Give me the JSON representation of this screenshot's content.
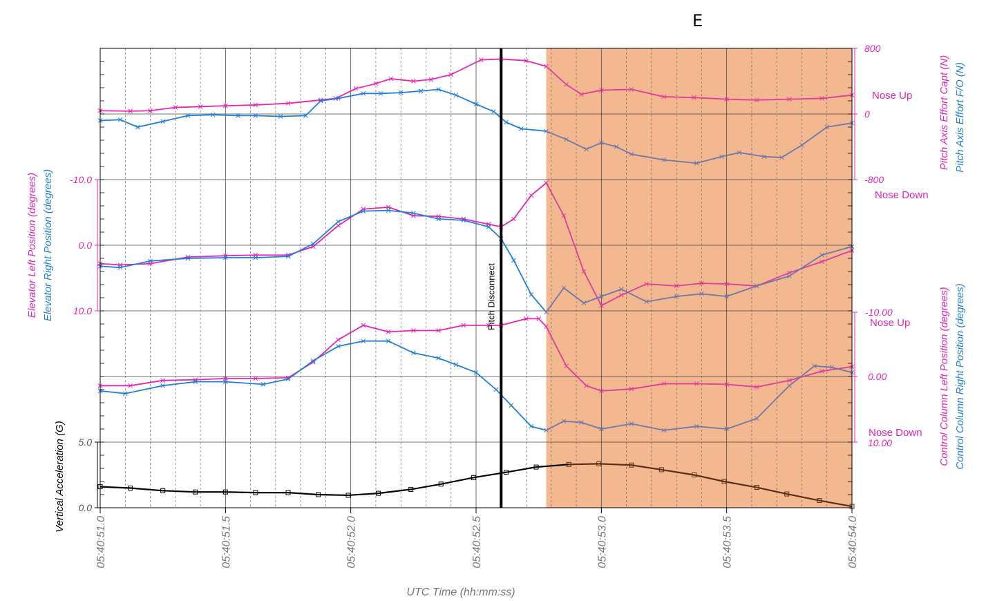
{
  "panel_label": "E",
  "colors": {
    "magenta": "#e823b5",
    "blue": "#1f7fd8",
    "black": "#000000",
    "shade": "#f4b891",
    "grid": "#555555",
    "blue_in_shade": "#6b78a8",
    "magenta_in_shade": "#e23a9a",
    "black_in_shade": "#5a2e17"
  },
  "chart_data": {
    "type": "line",
    "xlabel": "UTC Time (hh:mm:ss)",
    "x_ticks": [
      "05:40:51.0",
      "05:40:51.5",
      "05:40:52.0",
      "05:40:52.5",
      "05:40:53.0",
      "05:40:53.5",
      "05:40:54.0"
    ],
    "x_range": [
      51.0,
      54.0
    ],
    "shaded_region": {
      "x_start": 52.78,
      "x_end": 54.0
    },
    "event_marker": {
      "x": 52.6,
      "label": "Pitch Disconnect"
    },
    "panels": [
      {
        "name": "pitch_axis_effort",
        "axis_side": "right",
        "ylabel_1": "Pitch Axis Effort Capt (N)",
        "ylabel_2": "Pitch Axis Effort F/O (N)",
        "yticks": [
          "800",
          "0",
          "-800"
        ],
        "ylim": [
          -800,
          800
        ],
        "annotations": [
          "Nose Up",
          "Nose Down"
        ],
        "series": [
          {
            "name": "Capt",
            "color": "magenta",
            "x": [
              51.0,
              51.12,
              51.2,
              51.3,
              51.4,
              51.5,
              51.62,
              51.75,
              51.88,
              51.94,
              52.02,
              52.1,
              52.16,
              52.25,
              52.32,
              52.4,
              52.52,
              52.6,
              52.7,
              52.78,
              52.86,
              52.92,
              53.0,
              53.12,
              53.25,
              53.37,
              53.5,
              53.62,
              53.75,
              53.88,
              54.0
            ],
            "y": [
              40,
              35,
              40,
              80,
              90,
              100,
              110,
              130,
              170,
              190,
              310,
              370,
              430,
              400,
              420,
              480,
              660,
              670,
              650,
              580,
              360,
              240,
              290,
              300,
              210,
              200,
              180,
              170,
              180,
              190,
              230
            ]
          },
          {
            "name": "F/O",
            "color": "blue",
            "x": [
              51.0,
              51.08,
              51.15,
              51.25,
              51.35,
              51.45,
              51.55,
              51.62,
              51.72,
              51.82,
              51.88,
              51.95,
              52.05,
              52.12,
              52.2,
              52.28,
              52.35,
              52.42,
              52.5,
              52.57,
              52.62,
              52.68,
              52.78,
              52.86,
              52.94,
              53.0,
              53.06,
              53.12,
              53.25,
              53.38,
              53.48,
              53.55,
              53.65,
              53.72,
              53.8,
              53.9,
              54.0
            ],
            "y": [
              -80,
              -70,
              -160,
              -90,
              -20,
              -10,
              -20,
              -20,
              -30,
              -20,
              160,
              190,
              250,
              250,
              260,
              280,
              300,
              230,
              120,
              30,
              -100,
              -180,
              -210,
              -310,
              -430,
              -350,
              -400,
              -490,
              -560,
              -600,
              -520,
              -470,
              -520,
              -530,
              -380,
              -160,
              -110
            ]
          }
        ]
      },
      {
        "name": "elevator_position",
        "axis_side": "left",
        "ylabel_1": "Elevator Left Position (degrees)",
        "ylabel_2": "Elevator Right Position (degrees)",
        "yticks": [
          "-10.0",
          "0.0",
          "10.0"
        ],
        "ylim": [
          10,
          -10
        ],
        "series": [
          {
            "name": "Left",
            "color": "magenta",
            "x": [
              51.0,
              51.08,
              51.2,
              51.35,
              51.5,
              51.62,
              51.75,
              51.85,
              51.95,
              52.05,
              52.15,
              52.25,
              52.35,
              52.45,
              52.55,
              52.6,
              52.65,
              52.72,
              52.78,
              52.85,
              52.93,
              53.0,
              53.08,
              53.18,
              53.3,
              53.4,
              53.5,
              53.62,
              53.75,
              53.88,
              54.0
            ],
            "y": [
              2.8,
              3.0,
              2.8,
              1.8,
              1.6,
              1.5,
              1.5,
              0.2,
              -3.0,
              -5.5,
              -5.8,
              -4.5,
              -4.4,
              -4.0,
              -3.2,
              -2.8,
              -4.0,
              -7.6,
              -9.5,
              -4.5,
              4.0,
              9.2,
              7.6,
              5.9,
              6.2,
              5.8,
              5.9,
              6.2,
              4.2,
              2.5,
              0.8
            ]
          },
          {
            "name": "Right",
            "color": "blue",
            "x": [
              51.0,
              51.08,
              51.2,
              51.35,
              51.5,
              51.62,
              51.75,
              51.85,
              51.95,
              52.05,
              52.15,
              52.25,
              52.35,
              52.45,
              52.55,
              52.6,
              52.65,
              52.72,
              52.78,
              52.85,
              52.93,
              53.0,
              53.08,
              53.18,
              53.3,
              53.4,
              53.5,
              53.62,
              53.75,
              53.88,
              54.0
            ],
            "y": [
              3.2,
              3.4,
              2.4,
              2.0,
              1.9,
              1.9,
              1.7,
              -0.2,
              -3.6,
              -5.2,
              -5.3,
              -4.9,
              -4.0,
              -3.8,
              -2.8,
              -1.0,
              2.3,
              7.5,
              10.2,
              6.5,
              8.8,
              7.8,
              6.7,
              8.6,
              7.8,
              7.4,
              7.8,
              6.2,
              4.7,
              1.5,
              0.2
            ]
          }
        ]
      },
      {
        "name": "control_column_position",
        "axis_side": "right",
        "ylabel_1": "Control Column Left Position (degrees)",
        "ylabel_2": "Control Column Right Position (degrees)",
        "yticks": [
          "-10.00",
          "0.00",
          "10.00"
        ],
        "ylim": [
          10,
          -10
        ],
        "annotations": [
          "Nose Up",
          "Nose Down"
        ],
        "series": [
          {
            "name": "Left",
            "color": "magenta",
            "x": [
              51.0,
              51.12,
              51.25,
              51.38,
              51.5,
              51.62,
              51.75,
              51.85,
              51.95,
              52.05,
              52.15,
              52.25,
              52.35,
              52.45,
              52.55,
              52.6,
              52.7,
              52.75,
              52.78,
              52.86,
              52.94,
              53.0,
              53.12,
              53.25,
              53.38,
              53.5,
              53.62,
              53.75,
              53.88,
              54.0
            ],
            "y": [
              1.4,
              1.4,
              0.6,
              0.5,
              0.3,
              0.3,
              0.2,
              -2.2,
              -5.6,
              -7.8,
              -6.8,
              -7.0,
              -7.0,
              -7.8,
              -7.8,
              -7.8,
              -8.8,
              -8.8,
              -7.6,
              -1.6,
              1.4,
              2.2,
              1.9,
              1.1,
              1.1,
              1.2,
              1.6,
              0.6,
              -0.8,
              -1.5
            ]
          },
          {
            "name": "Right",
            "color": "blue",
            "x": [
              51.0,
              51.1,
              51.25,
              51.38,
              51.5,
              51.65,
              51.75,
              51.85,
              51.95,
              52.05,
              52.15,
              52.25,
              52.35,
              52.42,
              52.5,
              52.58,
              52.64,
              52.72,
              52.78,
              52.85,
              52.92,
              53.0,
              53.12,
              53.25,
              53.38,
              53.5,
              53.62,
              53.75,
              53.85,
              53.92,
              54.0
            ],
            "y": [
              2.2,
              2.6,
              1.4,
              0.8,
              0.8,
              1.2,
              0.4,
              -2.4,
              -4.6,
              -5.4,
              -5.4,
              -3.6,
              -2.8,
              -1.8,
              -0.6,
              2.0,
              4.4,
              7.6,
              8.2,
              6.8,
              7.0,
              8.0,
              7.2,
              8.2,
              7.6,
              8.0,
              6.4,
              1.4,
              -1.6,
              -1.4,
              -0.6
            ]
          }
        ]
      },
      {
        "name": "vertical_acceleration",
        "axis_side": "left",
        "ylabel_1": "Vertical Acceleration (G)",
        "yticks": [
          "5.0",
          "0.0"
        ],
        "ylim": [
          0,
          5
        ],
        "series": [
          {
            "name": "Vertical Acceleration",
            "color": "black",
            "x": [
              51.0,
              51.12,
              51.25,
              51.38,
              51.5,
              51.62,
              51.75,
              51.87,
              51.99,
              52.11,
              52.24,
              52.36,
              52.49,
              52.62,
              52.74,
              52.87,
              52.99,
              53.12,
              53.24,
              53.37,
              53.49,
              53.62,
              53.74,
              53.87,
              54.0
            ],
            "y": [
              1.6,
              1.5,
              1.3,
              1.2,
              1.2,
              1.15,
              1.15,
              1.0,
              0.95,
              1.1,
              1.4,
              1.8,
              2.3,
              2.7,
              3.1,
              3.3,
              3.35,
              3.25,
              2.9,
              2.5,
              2.0,
              1.55,
              1.05,
              0.55,
              0.1
            ]
          }
        ]
      }
    ]
  }
}
